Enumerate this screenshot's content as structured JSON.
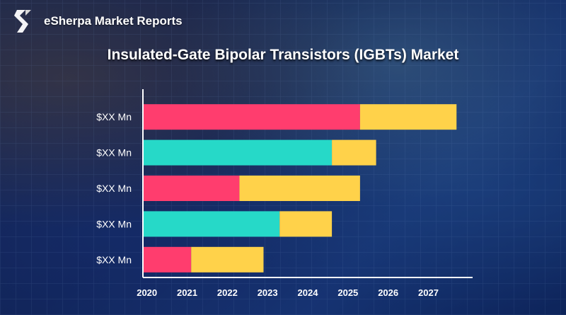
{
  "brand": {
    "name": "eSherpa Market Reports",
    "logo_icon": "esherpa-s-logo-icon"
  },
  "colors": {
    "pink": "#ff3d6e",
    "teal": "#26d9c8",
    "yellow": "#ffd24a",
    "axis": "#ffffff"
  },
  "chart_data": {
    "type": "bar",
    "orientation": "horizontal",
    "stacked": true,
    "title": "Insulated-Gate Bipolar Transistors (IGBTs) Market",
    "xlabel": "",
    "ylabel": "",
    "x_tick_labels": [
      "2020",
      "2021",
      "2022",
      "2023",
      "2024",
      "2025",
      "2026",
      "2027"
    ],
    "xlim": [
      2019.9,
      2028.1
    ],
    "categories": [
      "$XX Mn",
      "$XX Mn",
      "$XX Mn",
      "$XX Mn",
      "$XX Mn"
    ],
    "bars": [
      {
        "label": "$XX Mn",
        "start": 2019.9,
        "split": 2025.3,
        "end": 2027.7,
        "first_color": "#ff3d6e"
      },
      {
        "label": "$XX Mn",
        "start": 2019.9,
        "split": 2024.6,
        "end": 2025.7,
        "first_color": "#26d9c8"
      },
      {
        "label": "$XX Mn",
        "start": 2019.9,
        "split": 2022.3,
        "end": 2025.3,
        "first_color": "#ff3d6e"
      },
      {
        "label": "$XX Mn",
        "start": 2019.9,
        "split": 2023.3,
        "end": 2024.6,
        "first_color": "#26d9c8"
      },
      {
        "label": "$XX Mn",
        "start": 2019.9,
        "split": 2021.1,
        "end": 2022.9,
        "first_color": "#ff3d6e"
      }
    ],
    "second_color": "#ffd24a",
    "grid": false,
    "legend": "none"
  }
}
